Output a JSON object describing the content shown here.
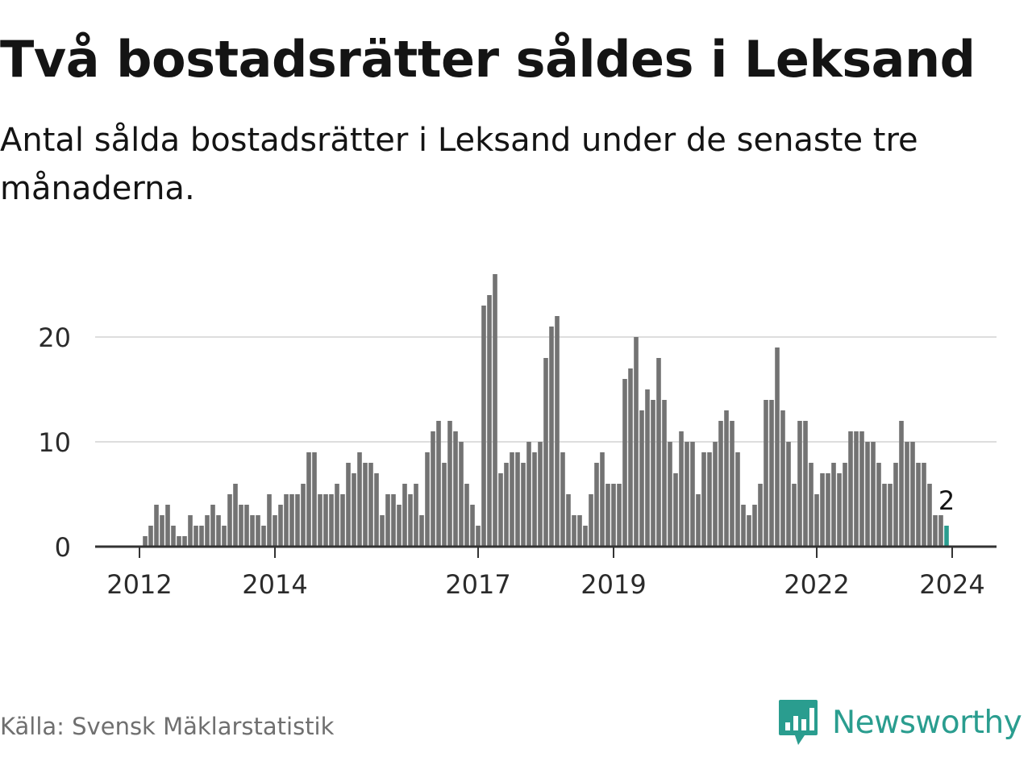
{
  "title": "Två bostadsrätter såldes i Leksand",
  "subtitle": "Antal sålda bostadsrätter i Leksand under de senaste tre månaderna.",
  "source": "Källa: Svensk Mäklarstatistik",
  "brand": {
    "name": "Newsworthy",
    "icon": "newsworthy-logo-icon",
    "color": "#2a9d8f"
  },
  "colors": {
    "bar": "#737373",
    "highlight": "#2a9d8f",
    "grid": "#dddddd",
    "axis": "#333333"
  },
  "chart_data": {
    "type": "bar",
    "title": "Två bostadsrätter såldes i Leksand",
    "ylim": [
      0,
      26
    ],
    "yticks": [
      0,
      10,
      20
    ],
    "xticks": [
      {
        "label": "2012",
        "index": 0
      },
      {
        "label": "2014",
        "index": 24
      },
      {
        "label": "2017",
        "index": 60
      },
      {
        "label": "2019",
        "index": 84
      },
      {
        "label": "2022",
        "index": 120
      },
      {
        "label": "2024",
        "index": 144
      }
    ],
    "last_value_label": "2",
    "series": [
      {
        "name": "Sålda bostadsrätter",
        "start_index": -8,
        "values": [
          0,
          0,
          0,
          0,
          0,
          0,
          0,
          0,
          0,
          1,
          2,
          4,
          3,
          4,
          2,
          1,
          1,
          3,
          2,
          2,
          3,
          4,
          3,
          2,
          5,
          6,
          4,
          4,
          3,
          3,
          2,
          5,
          3,
          4,
          5,
          5,
          5,
          6,
          9,
          9,
          5,
          5,
          5,
          6,
          5,
          8,
          7,
          9,
          8,
          8,
          7,
          3,
          5,
          5,
          4,
          6,
          5,
          6,
          3,
          9,
          11,
          12,
          8,
          12,
          11,
          10,
          6,
          4,
          2,
          23,
          24,
          26,
          7,
          8,
          9,
          9,
          8,
          10,
          9,
          10,
          18,
          21,
          22,
          9,
          5,
          3,
          3,
          2,
          5,
          8,
          9,
          6,
          6,
          6,
          16,
          17,
          20,
          13,
          15,
          14,
          18,
          14,
          10,
          7,
          11,
          10,
          10,
          5,
          9,
          9,
          10,
          12,
          13,
          12,
          9,
          4,
          3,
          4,
          6,
          14,
          14,
          19,
          13,
          10,
          6,
          12,
          12,
          8,
          5,
          7,
          7,
          8,
          7,
          8,
          11,
          11,
          11,
          10,
          10,
          8,
          6,
          6,
          8,
          12,
          10,
          10,
          8,
          8,
          6,
          3,
          3,
          2
        ]
      }
    ]
  }
}
